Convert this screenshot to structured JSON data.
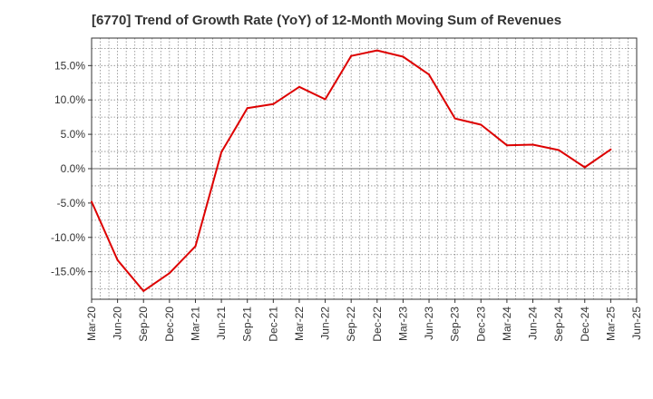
{
  "chart_data": {
    "type": "line",
    "title": "[6770]  Trend of Growth Rate (YoY) of 12-Month Moving Sum of Revenues",
    "xlabel": "",
    "ylabel": "",
    "categories": [
      "Mar-20",
      "Jun-20",
      "Sep-20",
      "Dec-20",
      "Mar-21",
      "Jun-21",
      "Sep-21",
      "Dec-21",
      "Mar-22",
      "Jun-22",
      "Sep-22",
      "Dec-22",
      "Mar-23",
      "Jun-23",
      "Sep-23",
      "Dec-23",
      "Mar-24",
      "Jun-24",
      "Sep-24",
      "Dec-24",
      "Mar-25",
      "Jun-25"
    ],
    "y_ticks": [
      {
        "value": 15,
        "label": "15.0%"
      },
      {
        "value": 10,
        "label": "10.0%"
      },
      {
        "value": 5,
        "label": "5.0%"
      },
      {
        "value": 0,
        "label": "0.0%"
      },
      {
        "value": -5,
        "label": "-5.0%"
      },
      {
        "value": -10,
        "label": "-10.0%"
      },
      {
        "value": -15,
        "label": "-15.0%"
      }
    ],
    "ylim": [
      -19,
      19
    ],
    "grid": true,
    "series": [
      {
        "color": "#dd0000",
        "values": [
          -4.8,
          -13.3,
          -17.8,
          -15.2,
          -11.3,
          2.4,
          8.8,
          9.4,
          11.9,
          10.1,
          16.4,
          17.2,
          16.3,
          13.7,
          7.3,
          6.4,
          3.4,
          3.5,
          2.7,
          0.2,
          2.8,
          null
        ]
      }
    ]
  }
}
